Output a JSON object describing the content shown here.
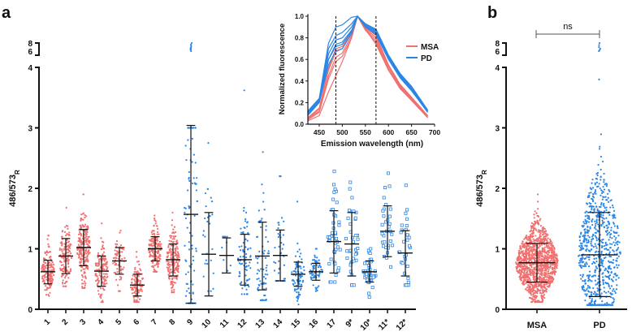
{
  "chart_data": [
    {
      "panel": "a",
      "type": "scatter",
      "ylabel_main": "486/573",
      "ylabel_sub": "R",
      "yticks": [
        "0",
        "1",
        "2",
        "3",
        "4"
      ],
      "ybreak_ticks": [
        "6",
        "8"
      ],
      "ylim": [
        0,
        8
      ],
      "colors": {
        "MSA": "#f07070",
        "PD": "#2a86e6"
      },
      "groups": [
        {
          "label": "1",
          "cohort": "MSA",
          "marker": "dot",
          "n": 160,
          "mean": 0.62,
          "sd_low": 0.42,
          "sd_high": 0.81,
          "min": 0.22,
          "max": 1.22
        },
        {
          "label": "2",
          "cohort": "MSA",
          "marker": "dot",
          "n": 140,
          "mean": 0.88,
          "sd_low": 0.59,
          "sd_high": 1.17,
          "min": 0.38,
          "max": 1.68
        },
        {
          "label": "3",
          "cohort": "MSA",
          "marker": "dot",
          "n": 220,
          "mean": 1.02,
          "sd_low": 0.72,
          "sd_high": 1.32,
          "min": 0.35,
          "max": 1.9
        },
        {
          "label": "4",
          "cohort": "MSA",
          "marker": "dot",
          "n": 140,
          "mean": 0.63,
          "sd_low": 0.38,
          "sd_high": 0.88,
          "min": 0.12,
          "max": 1.42
        },
        {
          "label": "5",
          "cohort": "MSA",
          "marker": "dot",
          "n": 70,
          "mean": 0.8,
          "sd_low": 0.58,
          "sd_high": 1.02,
          "min": 0.3,
          "max": 1.3
        },
        {
          "label": "6",
          "cohort": "MSA",
          "marker": "dot",
          "n": 120,
          "mean": 0.4,
          "sd_low": 0.22,
          "sd_high": 0.58,
          "min": 0.12,
          "max": 0.95
        },
        {
          "label": "7",
          "cohort": "MSA",
          "marker": "dot",
          "n": 170,
          "mean": 1.0,
          "sd_low": 0.8,
          "sd_high": 1.2,
          "min": 0.62,
          "max": 1.55
        },
        {
          "label": "8",
          "cohort": "MSA",
          "marker": "dot",
          "n": 200,
          "mean": 0.82,
          "sd_low": 0.55,
          "sd_high": 1.08,
          "min": 0.28,
          "max": 1.6
        },
        {
          "label": "9",
          "cohort": "PD",
          "marker": "dot",
          "n": 90,
          "mean": 1.57,
          "sd_low": 0.1,
          "sd_high": 3.04,
          "min": 0.1,
          "max": 3.0,
          "high": [
            6.0,
            6.3,
            6.5,
            6.7,
            6.9,
            7.2,
            7.6,
            8.0
          ]
        },
        {
          "label": "10",
          "cohort": "PD",
          "marker": "dot",
          "n": 25,
          "mean": 0.91,
          "sd_low": 0.22,
          "sd_high": 1.6,
          "min": 0.3,
          "max": 2.75
        },
        {
          "label": "11",
          "cohort": "PD",
          "marker": "dot",
          "n": 8,
          "mean": 0.89,
          "sd_low": 0.6,
          "sd_high": 1.18,
          "min": 0.6,
          "max": 1.2
        },
        {
          "label": "12",
          "cohort": "PD",
          "marker": "dot",
          "n": 80,
          "mean": 0.82,
          "sd_low": 0.4,
          "sd_high": 1.24,
          "min": 0.25,
          "max": 3.62
        },
        {
          "label": "13",
          "cohort": "PD",
          "marker": "dot",
          "n": 70,
          "mean": 0.88,
          "sd_low": 0.32,
          "sd_high": 1.44,
          "min": 0.15,
          "max": 2.6
        },
        {
          "label": "14",
          "cohort": "PD",
          "marker": "dot",
          "n": 40,
          "mean": 0.89,
          "sd_low": 0.47,
          "sd_high": 1.31,
          "min": 0.47,
          "max": 2.2
        },
        {
          "label": "15",
          "cohort": "PD",
          "marker": "dot",
          "n": 90,
          "mean": 0.58,
          "sd_low": 0.38,
          "sd_high": 0.78,
          "min": 0.08,
          "max": 1.78
        },
        {
          "label": "16",
          "cohort": "PD",
          "marker": "dot",
          "n": 70,
          "mean": 0.62,
          "sd_low": 0.48,
          "sd_high": 0.76,
          "min": 0.3,
          "max": 1.0
        },
        {
          "label": "17",
          "cohort": "PD",
          "marker": "square",
          "n": 40,
          "mean": 1.12,
          "sd_low": 0.6,
          "sd_high": 1.63,
          "min": 0.45,
          "max": 2.28
        },
        {
          "label": "9*",
          "cohort": "PD",
          "marker": "square",
          "n": 35,
          "mean": 1.08,
          "sd_low": 0.55,
          "sd_high": 1.6,
          "min": 0.4,
          "max": 2.1
        },
        {
          "label": "10*",
          "cohort": "PD",
          "marker": "square",
          "n": 40,
          "mean": 0.62,
          "sd_low": 0.45,
          "sd_high": 0.8,
          "min": 0.2,
          "max": 1.0
        },
        {
          "label": "11*",
          "cohort": "PD",
          "marker": "square",
          "n": 30,
          "mean": 1.29,
          "sd_low": 0.87,
          "sd_high": 1.71,
          "min": 0.7,
          "max": 2.25
        },
        {
          "label": "12*",
          "cohort": "PD",
          "marker": "square",
          "n": 30,
          "mean": 0.93,
          "sd_low": 0.55,
          "sd_high": 1.3,
          "min": 0.4,
          "max": 2.05
        }
      ]
    },
    {
      "panel": "a-inset",
      "type": "line",
      "xlabel": "Emission wavelength (nm)",
      "ylabel": "Normalized fluorescence",
      "xlim": [
        425,
        700
      ],
      "ylim": [
        0,
        1
      ],
      "xticks": [
        "450",
        "500",
        "550",
        "600",
        "650",
        "700"
      ],
      "yticks": [
        "0.0",
        "0.2",
        "0.4",
        "0.6",
        "0.8",
        "1.0"
      ],
      "vlines": [
        486,
        573
      ],
      "legend": [
        {
          "name": "MSA",
          "color": "#f07070"
        },
        {
          "name": "PD",
          "color": "#2a86e6"
        }
      ],
      "legend_position": "top-right",
      "x": [
        425,
        450,
        470,
        486,
        500,
        520,
        533,
        550,
        573,
        600,
        625,
        650,
        685
      ],
      "series": [
        {
          "name": "MSA",
          "values": [
            0.03,
            0.08,
            0.3,
            0.45,
            0.58,
            0.8,
            1.0,
            0.88,
            0.74,
            0.5,
            0.34,
            0.22,
            0.06
          ]
        },
        {
          "name": "MSA",
          "values": [
            0.05,
            0.12,
            0.45,
            0.62,
            0.66,
            0.82,
            1.0,
            0.88,
            0.78,
            0.52,
            0.35,
            0.23,
            0.07
          ]
        },
        {
          "name": "MSA",
          "values": [
            0.05,
            0.14,
            0.5,
            0.67,
            0.7,
            0.84,
            1.0,
            0.89,
            0.8,
            0.54,
            0.36,
            0.24,
            0.07
          ]
        },
        {
          "name": "MSA",
          "values": [
            0.04,
            0.11,
            0.42,
            0.58,
            0.63,
            0.8,
            1.0,
            0.87,
            0.76,
            0.5,
            0.33,
            0.22,
            0.06
          ]
        },
        {
          "name": "MSA",
          "values": [
            0.06,
            0.15,
            0.52,
            0.7,
            0.72,
            0.85,
            1.0,
            0.9,
            0.82,
            0.55,
            0.37,
            0.25,
            0.08
          ]
        },
        {
          "name": "PD",
          "values": [
            0.1,
            0.2,
            0.6,
            0.72,
            0.74,
            0.86,
            1.0,
            0.92,
            0.85,
            0.62,
            0.45,
            0.33,
            0.12
          ]
        },
        {
          "name": "PD",
          "values": [
            0.12,
            0.24,
            0.75,
            0.9,
            0.92,
            0.99,
            1.0,
            0.93,
            0.88,
            0.64,
            0.47,
            0.35,
            0.13
          ]
        },
        {
          "name": "PD",
          "values": [
            0.1,
            0.22,
            0.65,
            0.78,
            0.8,
            0.9,
            1.0,
            0.92,
            0.86,
            0.63,
            0.46,
            0.34,
            0.12
          ]
        },
        {
          "name": "PD",
          "values": [
            0.08,
            0.2,
            0.55,
            0.68,
            0.7,
            0.84,
            1.0,
            0.9,
            0.83,
            0.6,
            0.43,
            0.31,
            0.11
          ]
        },
        {
          "name": "PD",
          "values": [
            0.11,
            0.23,
            0.7,
            0.82,
            0.85,
            0.93,
            1.0,
            0.93,
            0.87,
            0.64,
            0.47,
            0.35,
            0.13
          ]
        },
        {
          "name": "PD",
          "values": [
            0.09,
            0.21,
            0.6,
            0.74,
            0.76,
            0.87,
            1.0,
            0.91,
            0.84,
            0.61,
            0.44,
            0.32,
            0.11
          ]
        }
      ]
    },
    {
      "panel": "b",
      "type": "scatter",
      "ylabel_main": "486/573",
      "ylabel_sub": "R",
      "yticks": [
        "0",
        "1",
        "2",
        "3",
        "4"
      ],
      "ybreak_ticks": [
        "6",
        "8"
      ],
      "significance": "ns",
      "groups": [
        {
          "label": "MSA",
          "cohort": "MSA",
          "n": 1200,
          "mean": 0.77,
          "sd_low": 0.45,
          "sd_high": 1.09,
          "min": 0.12,
          "max": 1.9
        },
        {
          "label": "PD",
          "cohort": "PD",
          "n": 700,
          "mean": 0.9,
          "sd_low": 0.21,
          "sd_high": 1.6,
          "min": 0.07,
          "max": 3.8,
          "high": [
            6.0,
            6.3,
            6.6,
            7.0,
            7.5,
            8.0
          ]
        }
      ]
    }
  ],
  "panels": {
    "a": "a",
    "b": "b"
  }
}
